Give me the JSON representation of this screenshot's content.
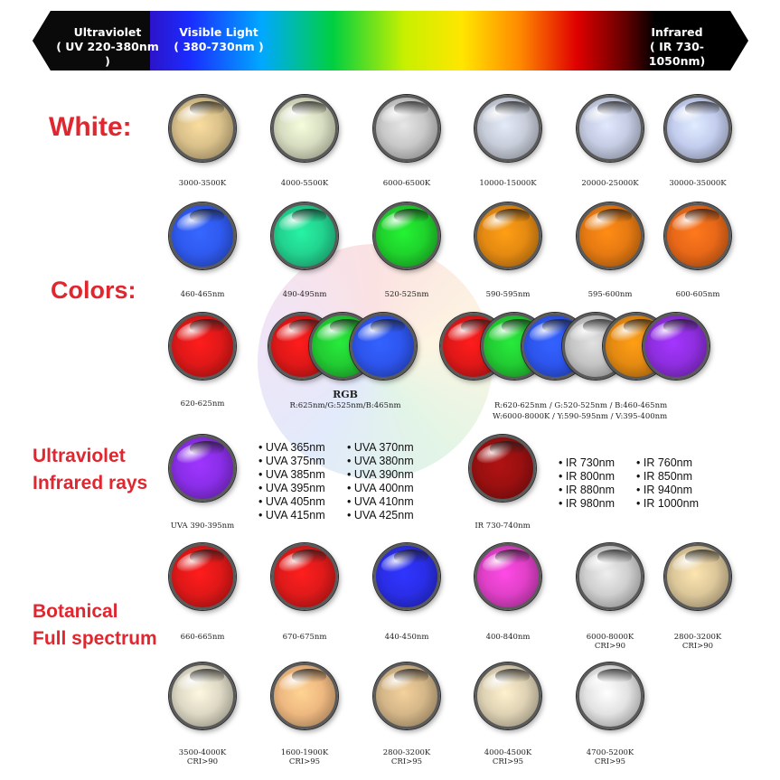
{
  "banner": {
    "uv": {
      "title": "Ultraviolet",
      "range": "( UV 220-380nm )"
    },
    "visible": {
      "title": "Visible Light",
      "range": "( 380-730nm )"
    },
    "ir": {
      "title": "Infrared",
      "range": "( IR 730-1050nm)"
    }
  },
  "sections": {
    "white": "White:",
    "colors": "Colors:",
    "uv_ir_line1": "Ultraviolet",
    "uv_ir_line2": "Infrared rays",
    "bot_line1": "Botanical",
    "bot_line2": "Full spectrum"
  },
  "white_row": [
    {
      "label": "3000-3500K",
      "color": "#d9c08a"
    },
    {
      "label": "4000-5500K",
      "color": "#d6dcc0"
    },
    {
      "label": "6000-6500K",
      "color": "#c8c8c8"
    },
    {
      "label": "10000-15000K",
      "color": "#c6ccd8"
    },
    {
      "label": "20000-25000K",
      "color": "#c4cbe2"
    },
    {
      "label": "30000-35000K",
      "color": "#c3cdee"
    }
  ],
  "color_row": [
    {
      "label": "460-465nm",
      "color": "#2f5af0"
    },
    {
      "label": "490-495nm",
      "color": "#22d38f"
    },
    {
      "label": "520-525nm",
      "color": "#1fd32c"
    },
    {
      "label": "590-595nm",
      "color": "#e58a12"
    },
    {
      "label": "595-600nm",
      "color": "#e67a12"
    },
    {
      "label": "600-605nm",
      "color": "#e86818"
    }
  ],
  "red_single": {
    "label": "620-625nm",
    "color": "#e01818"
  },
  "rgb": {
    "title": "RGB",
    "spec": "R:625nm/G:525nm/B:465nm",
    "colors": [
      "#e01818",
      "#22cc33",
      "#2d55ee"
    ]
  },
  "multi": {
    "line1": "R:620-625nm / G:520-525nm / B:460-465nm",
    "line2": "W:6000-8000K / Y:590-595nm / V:395-400nm",
    "colors": [
      "#e01818",
      "#22cc33",
      "#2d55ee",
      "#c4c4c4",
      "#e58a12",
      "#8f2ee0"
    ]
  },
  "uv_single": {
    "label": "UVA 390-395nm",
    "color": "#8a2ee8"
  },
  "uva_col1": [
    "UVA 365nm",
    "UVA 375nm",
    "UVA 385nm",
    "UVA 395nm",
    "UVA 405nm",
    "UVA 415nm"
  ],
  "uva_col2": [
    "UVA 370nm",
    "UVA 380nm",
    "UVA 390nm",
    "UVA 400nm",
    "UVA 410nm",
    "UVA 425nm"
  ],
  "ir_single": {
    "label": "IR 730-740nm",
    "color": "#9a1010"
  },
  "ir_col1": [
    "IR 730nm",
    "IR 800nm",
    "IR 880nm",
    "IR 980nm"
  ],
  "ir_col2": [
    "IR 760nm",
    "IR 850nm",
    "IR 940nm",
    "IR 1000nm"
  ],
  "bot_row1": [
    {
      "label": "660-665nm",
      "sub": "",
      "color": "#e01818"
    },
    {
      "label": "670-675nm",
      "sub": "",
      "color": "#e01a1a"
    },
    {
      "label": "440-450nm",
      "sub": "",
      "color": "#2a2ee8"
    },
    {
      "label": "400-840nm",
      "sub": "",
      "color": "#e040c8"
    },
    {
      "label": "6000-8000K",
      "sub": "CRI>90",
      "color": "#cfcfcf"
    },
    {
      "label": "2800-3200K",
      "sub": "CRI>90",
      "color": "#dcc79a"
    }
  ],
  "bot_row2": [
    {
      "label": "3500-4000K",
      "sub": "CRI>90",
      "color": "#ddd8c4"
    },
    {
      "label": "1600-1900K",
      "sub": "CRI>95",
      "color": "#eeb880"
    },
    {
      "label": "2800-3200K",
      "sub": "CRI>95",
      "color": "#d4b688"
    },
    {
      "label": "4000-4500K",
      "sub": "CRI>95",
      "color": "#ded2b4"
    },
    {
      "label": "4700-5200K",
      "sub": "CRI>95",
      "color": "#e2e2e2"
    }
  ]
}
